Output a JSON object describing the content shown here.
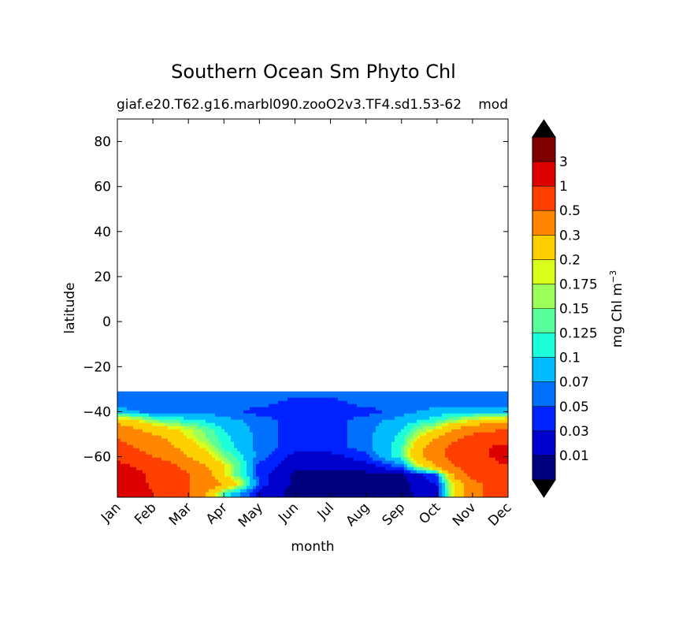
{
  "chart_data": {
    "type": "heatmap",
    "title": "Southern Ocean Sm Phyto Chl",
    "subtitle_left": "giaf.e20.T62.g16.marbl090.zooO2v3.TF4.sd1.53-62",
    "subtitle_right": "mod",
    "xlabel": "month",
    "ylabel": "latitude",
    "x_ticks": [
      "Jan",
      "Feb",
      "Mar",
      "Apr",
      "May",
      "Jun",
      "Jul",
      "Aug",
      "Sep",
      "Oct",
      "Nov",
      "Dec"
    ],
    "y_ticks": [
      80,
      60,
      40,
      20,
      0,
      -20,
      -40,
      -60
    ],
    "y_tick_labels": [
      "80",
      "60",
      "40",
      "20",
      "0",
      "−20",
      "−40",
      "−60"
    ],
    "ylim": [
      -78,
      90
    ],
    "data_lat_range": [
      -78,
      -31
    ],
    "grid": false,
    "colorbar": {
      "label": "mg Chl m",
      "label_superscript": "−3",
      "extend": "both",
      "levels": [
        0.01,
        0.03,
        0.05,
        0.07,
        0.1,
        0.125,
        0.15,
        0.175,
        0.2,
        0.3,
        0.5,
        1,
        3
      ],
      "tick_labels": [
        "0.01",
        "0.03",
        "0.05",
        "0.07",
        "0.1",
        "0.125",
        "0.15",
        "0.175",
        "0.2",
        "0.3",
        "0.5",
        "1",
        "3"
      ],
      "colors": [
        "#00007f",
        "#0000cd",
        "#0022ff",
        "#0070ff",
        "#00bcff",
        "#1dffda",
        "#59ff9d",
        "#9dff59",
        "#daff1d",
        "#ffd000",
        "#ff8600",
        "#ff3f00",
        "#dd0000",
        "#7f0000"
      ],
      "under_color": "#000000",
      "over_color": "#000000"
    },
    "field": {
      "months": [
        1,
        2,
        3,
        4,
        5,
        6,
        7,
        8,
        9,
        10,
        11,
        12
      ],
      "latitudes": [
        -32,
        -36,
        -40,
        -44,
        -48,
        -52,
        -56,
        -60,
        -64,
        -68,
        -72,
        -76
      ],
      "values": [
        [
          0.06,
          0.06,
          0.06,
          0.06,
          0.06,
          0.06,
          0.06,
          0.06,
          0.06,
          0.06,
          0.06,
          0.06
        ],
        [
          0.06,
          0.06,
          0.06,
          0.06,
          0.06,
          0.04,
          0.04,
          0.06,
          0.06,
          0.06,
          0.06,
          0.06
        ],
        [
          0.08,
          0.06,
          0.06,
          0.06,
          0.04,
          0.04,
          0.04,
          0.04,
          0.06,
          0.08,
          0.08,
          0.08
        ],
        [
          0.25,
          0.15,
          0.11,
          0.08,
          0.06,
          0.04,
          0.04,
          0.06,
          0.08,
          0.12,
          0.2,
          0.25
        ],
        [
          0.4,
          0.25,
          0.18,
          0.1,
          0.06,
          0.04,
          0.04,
          0.06,
          0.1,
          0.2,
          0.4,
          0.5
        ],
        [
          0.5,
          0.35,
          0.2,
          0.11,
          0.06,
          0.04,
          0.04,
          0.06,
          0.11,
          0.3,
          0.6,
          0.8
        ],
        [
          0.6,
          0.4,
          0.25,
          0.12,
          0.06,
          0.04,
          0.04,
          0.06,
          0.12,
          0.4,
          0.8,
          1.2
        ],
        [
          0.8,
          0.5,
          0.3,
          0.15,
          0.06,
          0.02,
          0.02,
          0.04,
          0.12,
          0.4,
          0.8,
          1.2
        ],
        [
          1.2,
          0.7,
          0.4,
          0.2,
          0.04,
          0.02,
          0.02,
          0.02,
          0.06,
          0.3,
          0.7,
          1.0
        ],
        [
          1.5,
          0.9,
          0.5,
          0.2,
          0.04,
          0.005,
          0.005,
          0.005,
          0.005,
          0.05,
          0.6,
          0.8
        ],
        [
          1.5,
          0.9,
          0.5,
          0.3,
          0.04,
          0.005,
          0.005,
          0.005,
          0.005,
          0.03,
          0.4,
          0.8
        ],
        [
          1.5,
          1.0,
          0.5,
          0.12,
          0.02,
          0.005,
          0.005,
          0.005,
          0.005,
          0.02,
          0.4,
          0.7
        ]
      ]
    }
  }
}
